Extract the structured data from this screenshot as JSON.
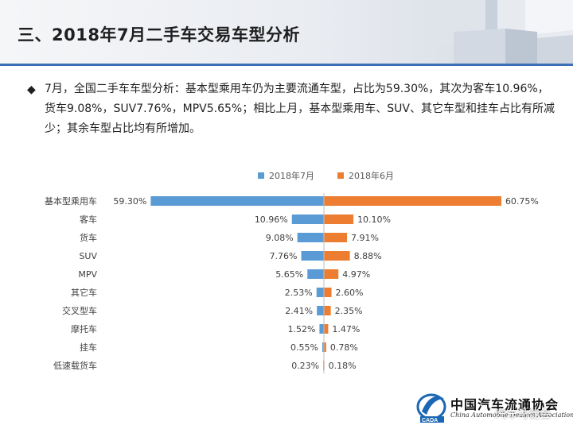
{
  "header": {
    "title": "三、2018年7月二手车交易车型分析"
  },
  "summary": {
    "bullet": "◆",
    "text": "7月，全国二手车车型分析：基本型乘用车仍为主要流通车型，占比为59.30%，其次为客车10.96%，货车9.08%，SUV7.76%，MPV5.65%；相比上月，基本型乘用车、SUV、其它车型和挂车占比有所减少；其余车型占比均有所增加。"
  },
  "chart_data": {
    "type": "bar",
    "orientation": "horizontal-butterfly",
    "title": "",
    "xlabel": "",
    "ylabel": "",
    "legend_position": "top",
    "grid": false,
    "categories": [
      "基本型乘用车",
      "客车",
      "货车",
      "SUV",
      "MPV",
      "其它车",
      "交叉型车",
      "摩托车",
      "挂车",
      "低速载货车"
    ],
    "series": [
      {
        "name": "2018年7月",
        "color": "#5b9bd5",
        "values": [
          59.3,
          10.96,
          9.08,
          7.76,
          5.65,
          2.53,
          2.41,
          1.52,
          0.55,
          0.23
        ],
        "labels": [
          "59.30%",
          "10.96%",
          "9.08%",
          "7.76%",
          "5.65%",
          "2.53%",
          "2.41%",
          "1.52%",
          "0.55%",
          "0.23%"
        ]
      },
      {
        "name": "2018年6月",
        "color": "#ed7d31",
        "values": [
          60.75,
          10.1,
          7.91,
          8.88,
          4.97,
          2.6,
          2.35,
          1.47,
          0.78,
          0.18
        ],
        "labels": [
          "60.75%",
          "10.10%",
          "7.91%",
          "8.88%",
          "4.97%",
          "2.60%",
          "2.35%",
          "1.47%",
          "0.78%",
          "0.18%"
        ]
      }
    ]
  },
  "footer": {
    "logo_cn": "中国汽车流通协会",
    "logo_en": "China Automobile Dealers Association",
    "logo_abbr": "CADA",
    "watermark": "汽车马徒会"
  }
}
